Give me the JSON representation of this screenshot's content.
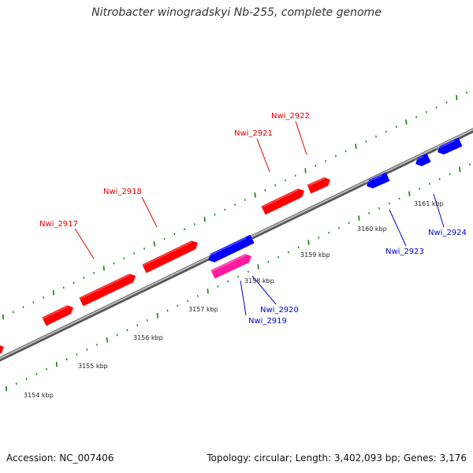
{
  "title": "Nitrobacter winogradskyi Nb-255, complete genome",
  "footer": {
    "accession": "Accession: NC_007406",
    "topology": "Topology: circular; Length: 3,402,093 bp; Genes: 3,176"
  },
  "colors": {
    "forward_gene": "#ff0000",
    "reverse_gene": "#0000ff",
    "highlight_gene": "#ff1aa0",
    "backbone": "#888888",
    "tick": "#1a7a1a",
    "forward_label": "#e00000",
    "reverse_label": "#0000cc"
  },
  "scale": {
    "ticks": [
      {
        "label": "3154 kbp"
      },
      {
        "label": "3155 kbp"
      },
      {
        "label": "3156 kbp"
      },
      {
        "label": "3157 kbp"
      },
      {
        "label": "3158 kbp"
      },
      {
        "label": "3159 kbp"
      },
      {
        "label": "3160 kbp"
      },
      {
        "label": "3161 kbp"
      }
    ]
  },
  "genes": {
    "forward_labels": [
      {
        "name": "Nwi_2917"
      },
      {
        "name": "Nwi_2918"
      },
      {
        "name": "Nwi_2921"
      },
      {
        "name": "Nwi_2922"
      }
    ],
    "reverse_labels": [
      {
        "name": "Nwi_2919"
      },
      {
        "name": "Nwi_2920"
      },
      {
        "name": "Nwi_2923"
      },
      {
        "name": "Nwi_2924"
      }
    ]
  }
}
